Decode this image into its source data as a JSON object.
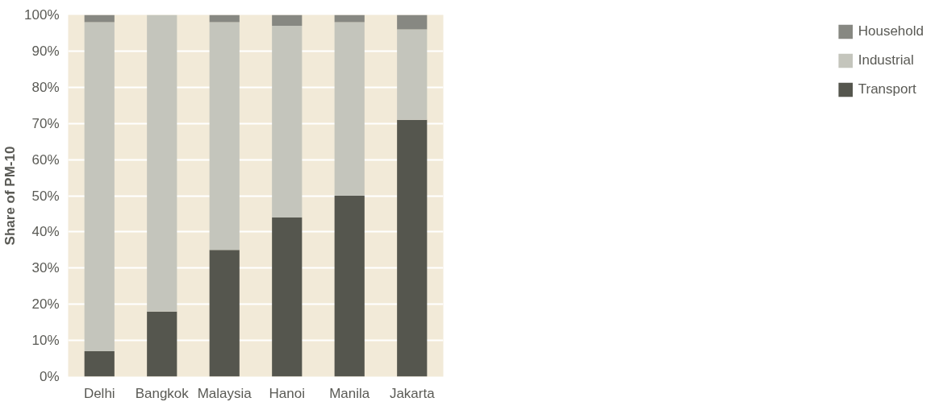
{
  "chart_data": {
    "type": "bar",
    "stacked": true,
    "ylabel": "Share of PM-10",
    "categories": [
      "Delhi",
      "Bangkok",
      "Malaysia",
      "Hanoi",
      "Manila",
      "Jakarta"
    ],
    "series": [
      {
        "name": "Transport",
        "color": "#55564e",
        "values": [
          7,
          18,
          35,
          44,
          50,
          71
        ]
      },
      {
        "name": "Industrial",
        "color": "#c4c5bc",
        "values": [
          91,
          82,
          63,
          53,
          48,
          25
        ]
      },
      {
        "name": "Household",
        "color": "#878882",
        "values": [
          2,
          0,
          2,
          3,
          2,
          4
        ]
      }
    ],
    "ylim": [
      0,
      100
    ],
    "yticks": [
      {
        "value": 0,
        "label": "0%"
      },
      {
        "value": 10,
        "label": "10%"
      },
      {
        "value": 20,
        "label": "20%"
      },
      {
        "value": 30,
        "label": "30%"
      },
      {
        "value": 40,
        "label": "40%"
      },
      {
        "value": 50,
        "label": "50%"
      },
      {
        "value": 60,
        "label": "60%"
      },
      {
        "value": 70,
        "label": "70%"
      },
      {
        "value": 80,
        "label": "80%"
      },
      {
        "value": 90,
        "label": "90%"
      },
      {
        "value": 100,
        "label": "100%"
      }
    ],
    "grid": "y",
    "legend": "right"
  }
}
